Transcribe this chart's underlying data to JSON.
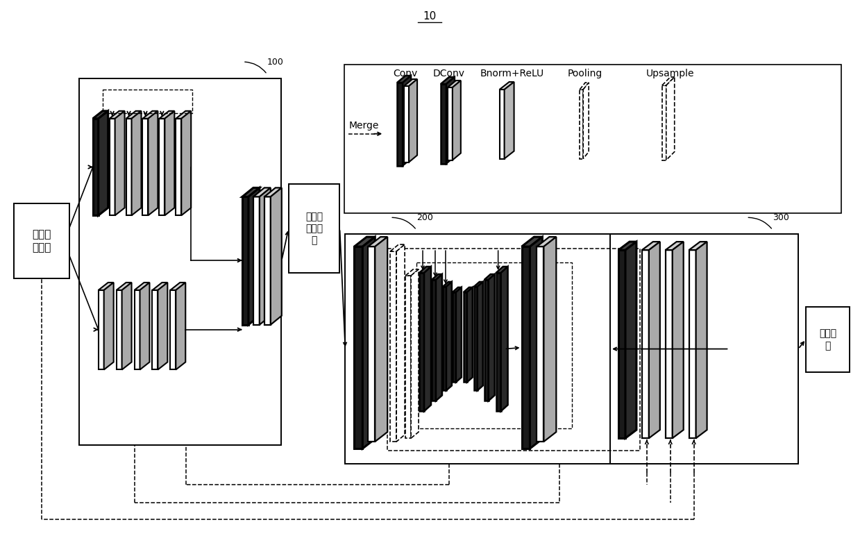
{
  "title": "10",
  "bg_color": "#ffffff",
  "label_100": "100",
  "label_200": "200",
  "label_300": "300",
  "box_orig": "原始模\n糊图像",
  "box_feat": "模糊图\n像特征\n图",
  "box_clear": "清晰图\n像",
  "legend_Conv": "Conv",
  "legend_DConv": "DConv",
  "legend_Bnorm": "Bnorm+ReLU",
  "legend_Pooling": "Pooling",
  "legend_Upsample": "Upsample",
  "legend_Merge": "Merge"
}
